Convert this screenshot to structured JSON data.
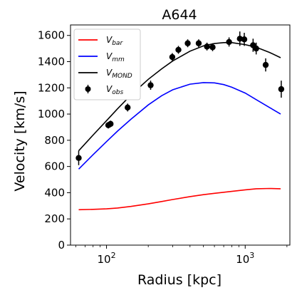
{
  "chart_data": {
    "type": "line",
    "title": "A644",
    "xlabel": "Radius [kpc]",
    "ylabel": "Velocity [km/s]",
    "xscale": "log",
    "xlim": [
      55,
      2100
    ],
    "ylim": [
      0,
      1680
    ],
    "yticks": [
      0,
      200,
      400,
      600,
      800,
      1000,
      1200,
      1400,
      1600
    ],
    "xticks": [
      {
        "value": 100,
        "base": "10",
        "exp": "2"
      },
      {
        "value": 1000,
        "base": "10",
        "exp": "3"
      }
    ],
    "grid": false,
    "legend_position": "top-left",
    "series": [
      {
        "name": "V_bar",
        "label_main": "V",
        "label_sub": "bar",
        "style": "line",
        "color": "#ff0000",
        "x": [
          63,
          80,
          100,
          120,
          150,
          200,
          250,
          300,
          400,
          500,
          600,
          800,
          1000,
          1200,
          1500,
          1800
        ],
        "y": [
          270,
          273,
          277,
          283,
          295,
          315,
          333,
          348,
          370,
          385,
          395,
          410,
          422,
          430,
          432,
          430
        ]
      },
      {
        "name": "V_mm",
        "label_main": "V",
        "label_sub": "mm",
        "style": "line",
        "color": "#0000ff",
        "x": [
          63,
          80,
          100,
          120,
          150,
          200,
          250,
          300,
          400,
          500,
          600,
          700,
          800,
          1000,
          1200,
          1500,
          1800
        ],
        "y": [
          580,
          690,
          790,
          870,
          960,
          1070,
          1140,
          1185,
          1228,
          1240,
          1238,
          1225,
          1205,
          1160,
          1110,
          1050,
          1000
        ]
      },
      {
        "name": "V_MOND",
        "label_main": "V",
        "label_sub": "MOND",
        "style": "line",
        "color": "#000000",
        "x": [
          63,
          80,
          100,
          120,
          150,
          200,
          250,
          300,
          400,
          500,
          600,
          700,
          800,
          1000,
          1200,
          1500,
          1800
        ],
        "y": [
          720,
          840,
          950,
          1040,
          1145,
          1265,
          1345,
          1405,
          1480,
          1520,
          1538,
          1545,
          1545,
          1530,
          1510,
          1470,
          1430
        ]
      },
      {
        "name": "V_obs",
        "label_main": "V",
        "label_sub": "obs",
        "style": "errorbar",
        "color": "#000000",
        "x": [
          63,
          103,
          107,
          142,
          208,
          298,
          330,
          385,
          462,
          530,
          582,
          765,
          915,
          985,
          1140,
          1200,
          1405,
          1820
        ],
        "y": [
          665,
          915,
          925,
          1050,
          1220,
          1435,
          1490,
          1540,
          1540,
          1515,
          1510,
          1550,
          1575,
          1570,
          1525,
          1500,
          1375,
          1190
        ],
        "yerr": [
          55,
          25,
          25,
          30,
          35,
          30,
          30,
          30,
          30,
          30,
          30,
          35,
          55,
          50,
          50,
          45,
          50,
          65
        ]
      }
    ]
  }
}
